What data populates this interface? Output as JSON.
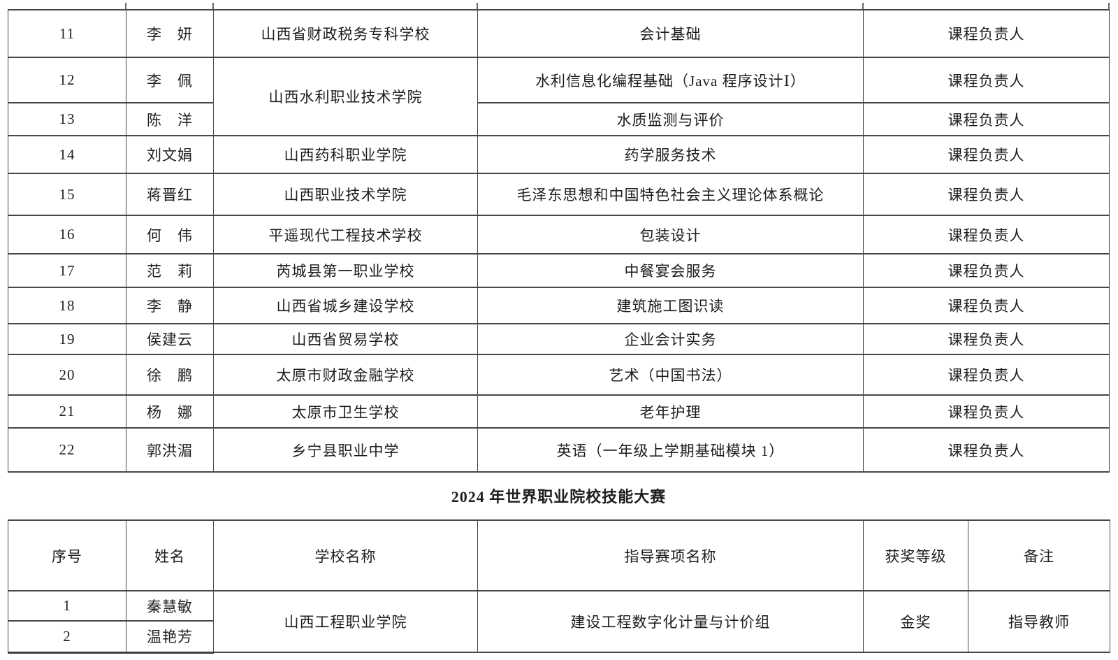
{
  "page": {
    "background_color": "#ffffff",
    "text_color": "#1d1d1d",
    "grid_color": "#474747"
  },
  "section_title": "2024 年世界职业院校技能大赛",
  "continued_table": {
    "role_label_repeated": "课程负责人",
    "rows": [
      {
        "no": "11",
        "name": "李　妍",
        "school": "山西省财政税务专科学校",
        "school_rowspan": 1,
        "course": "会计基础",
        "role": "课程负责人"
      },
      {
        "no": "12",
        "name": "李　佩",
        "school": "山西水利职业技术学院",
        "school_rowspan": 2,
        "course": "水利信息化编程基础（Java 程序设计Ⅰ）",
        "role": "课程负责人"
      },
      {
        "no": "13",
        "name": "陈　洋",
        "school": null,
        "course": "水质监测与评价",
        "role": "课程负责人"
      },
      {
        "no": "14",
        "name": "刘文娟",
        "school": "山西药科职业学院",
        "school_rowspan": 1,
        "course": "药学服务技术",
        "role": "课程负责人"
      },
      {
        "no": "15",
        "name": "蒋晋红",
        "school": "山西职业技术学院",
        "school_rowspan": 1,
        "course": "毛泽东思想和中国特色社会主义理论体系概论",
        "role": "课程负责人"
      },
      {
        "no": "16",
        "name": "何　伟",
        "school": "平遥现代工程技术学校",
        "school_rowspan": 1,
        "course": "包装设计",
        "role": "课程负责人"
      },
      {
        "no": "17",
        "name": "范　莉",
        "school": "芮城县第一职业学校",
        "school_rowspan": 1,
        "course": "中餐宴会服务",
        "role": "课程负责人"
      },
      {
        "no": "18",
        "name": "李　静",
        "school": "山西省城乡建设学校",
        "school_rowspan": 1,
        "course": "建筑施工图识读",
        "role": "课程负责人"
      },
      {
        "no": "19",
        "name": "侯建云",
        "school": "山西省贸易学校",
        "school_rowspan": 1,
        "course": "企业会计实务",
        "role": "课程负责人"
      },
      {
        "no": "20",
        "name": "徐　鹏",
        "school": "太原市财政金融学校",
        "school_rowspan": 1,
        "course": "艺术（中国书法）",
        "role": "课程负责人"
      },
      {
        "no": "21",
        "name": "杨　娜",
        "school": "太原市卫生学校",
        "school_rowspan": 1,
        "course": "老年护理",
        "role": "课程负责人"
      },
      {
        "no": "22",
        "name": "郭洪湄",
        "school": "乡宁县职业中学",
        "school_rowspan": 1,
        "course": "英语（一年级上学期基础模块 1）",
        "role": "课程负责人"
      }
    ]
  },
  "competition_table": {
    "headers": {
      "no": "序号",
      "name": "姓名",
      "school": "学校名称",
      "event": "指导赛项名称",
      "award": "获奖等级",
      "note": "备注"
    },
    "rows": [
      {
        "no": "1",
        "name": "秦慧敏"
      },
      {
        "no": "2",
        "name": "温艳芳"
      }
    ],
    "merged": {
      "school": "山西工程职业学院",
      "event": "建设工程数字化计量与计价组",
      "award": "金奖",
      "note": "指导教师"
    }
  }
}
